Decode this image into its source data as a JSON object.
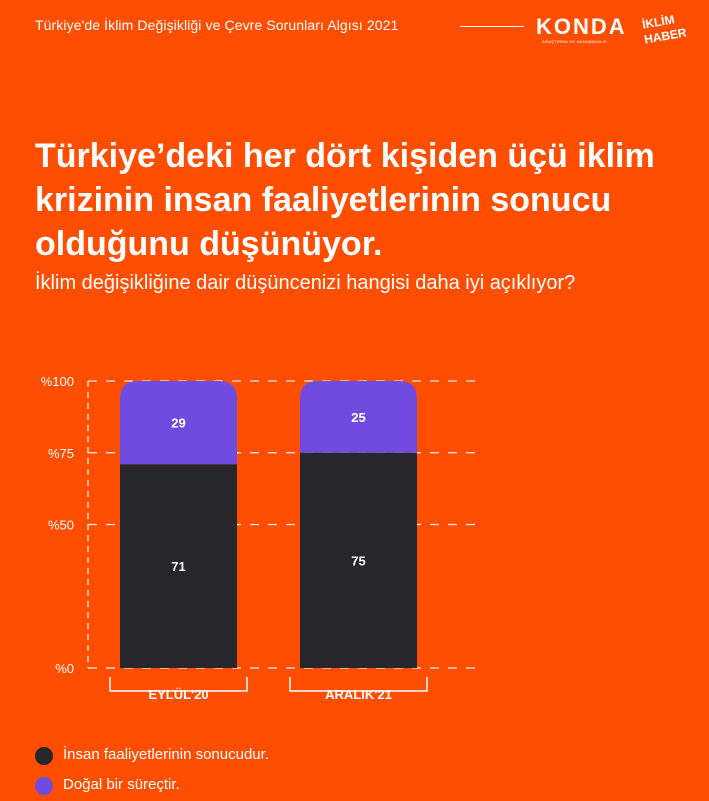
{
  "header": {
    "title": "Türkiye'de İklim Değişikliği ve Çevre Sorunları Algısı 2021",
    "logo_konda": "KONDA",
    "logo_konda_sub": "ARAŞTIRMA VE DANIŞMANLIK",
    "logo_iklim_line1": "İKLİM",
    "logo_iklim_line2": "HABER"
  },
  "headline": "Türkiye’deki her dört kişiden üçü iklim krizinin insan faaliyetlerinin sonucu olduğunu düşünüyor.",
  "question": "İklim değişikliğine dair düşüncenizi hangisi daha iyi açıklıyor?",
  "colors": {
    "background": "#FF4E02",
    "human": "#26262B",
    "natural": "#6F4BE0",
    "text": "#FFFFFF"
  },
  "chart_data": {
    "type": "bar",
    "stacked": true,
    "categories": [
      "EYLÜL'20",
      "ARALIK'21"
    ],
    "series": [
      {
        "name": "İnsan faaliyetlerinin sonucudur.",
        "values": [
          71,
          75
        ],
        "color": "#26262B"
      },
      {
        "name": "Doğal bir süreçtir.",
        "values": [
          29,
          25
        ],
        "color": "#6F4BE0"
      }
    ],
    "yticks": [
      "%100",
      "%75",
      "%50",
      "%0"
    ],
    "ylim": [
      0,
      100
    ],
    "grid": true,
    "legend_position": "bottom-left"
  }
}
